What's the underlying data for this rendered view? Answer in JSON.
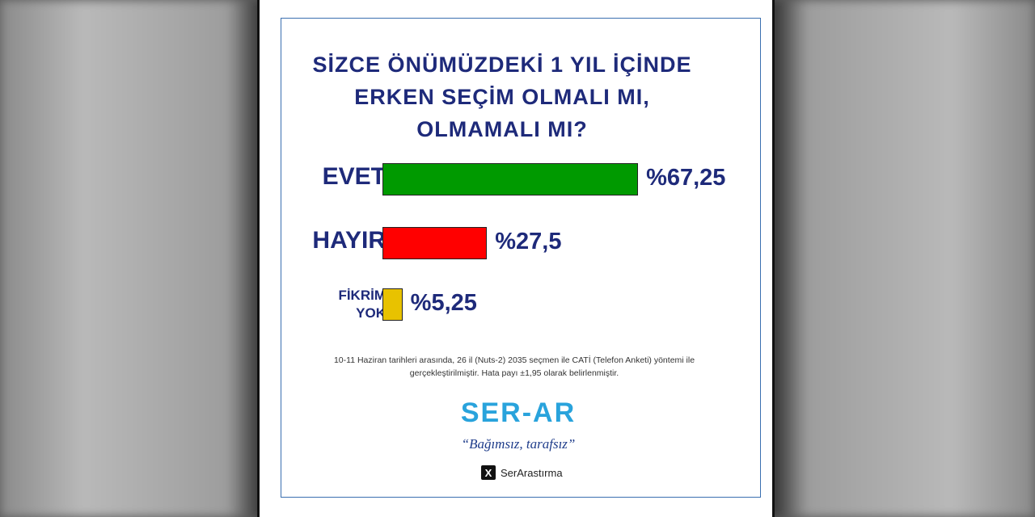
{
  "chart_data": {
    "type": "bar",
    "orientation": "horizontal",
    "title": "SİZCE ÖNÜMÜZDEKİ 1 YIL İÇİNDE ERKEN SEÇİM OLMALI MI, OLMAMALI MI?",
    "categories": [
      "EVET",
      "HAYIR",
      "FİKRİM YOK"
    ],
    "values": [
      67.25,
      27.5,
      5.25
    ],
    "value_labels": [
      "%67,25",
      "%27,5",
      "%5,25"
    ],
    "colors": [
      "#009a00",
      "#ff0000",
      "#e8c200"
    ],
    "note": "10-11 Haziran tarihleri arasında, 26 il (Nuts-2) 2035 seçmen ile CATİ (Telefon Anketi) yöntemi ile gerçekleştirilmiştir. Hata payı ±1,95 olarak belirlenmiştir.",
    "logo": "SER-AR",
    "tagline": "“Bağımsız, tarafsız”",
    "handle": "SerArastırma"
  }
}
